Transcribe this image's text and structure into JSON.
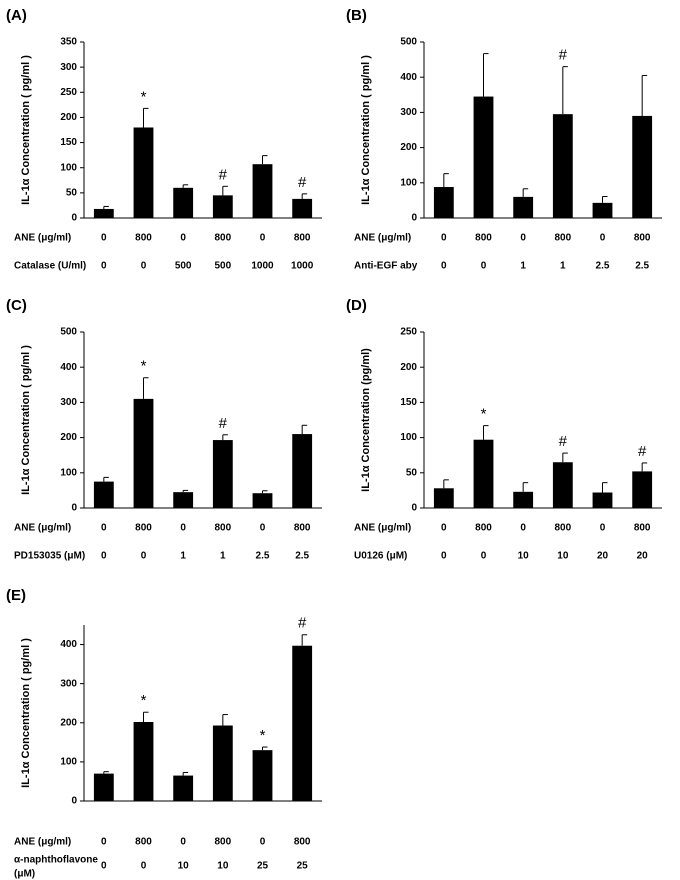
{
  "chart_data": [
    {
      "type": "bar",
      "panel_label": "(A)",
      "y_label": "IL-1α Concentration ( pg/ml )",
      "color": "#000000",
      "values": [
        18,
        180,
        60,
        45,
        107,
        38
      ],
      "errors": [
        5,
        38,
        6,
        18,
        17,
        10
      ],
      "annotations": [
        null,
        "*",
        null,
        "#",
        null,
        "#"
      ],
      "ylim": [
        0,
        350
      ],
      "yticks": [
        0,
        50,
        100,
        150,
        200,
        250,
        300,
        350
      ],
      "rows": [
        {
          "name": "ANE (μg/ml)",
          "labels": [
            "0",
            "800",
            "0",
            "800",
            "0",
            "800"
          ]
        },
        {
          "name": "Catalase (U/ml)",
          "labels": [
            "0",
            "0",
            "500",
            "500",
            "1000",
            "1000"
          ]
        }
      ]
    },
    {
      "type": "bar",
      "panel_label": "(B)",
      "y_label": "IL-1α Concentration ( pg/ml )",
      "color": "#000000",
      "values": [
        88,
        345,
        60,
        295,
        43,
        290
      ],
      "errors": [
        38,
        122,
        23,
        135,
        18,
        115
      ],
      "annotations": [
        null,
        null,
        null,
        "#",
        null,
        null
      ],
      "ylim": [
        0,
        500
      ],
      "yticks": [
        0,
        100,
        200,
        300,
        400,
        500
      ],
      "rows": [
        {
          "name": "ANE (μg/ml)",
          "labels": [
            "0",
            "800",
            "0",
            "800",
            "0",
            "800"
          ]
        },
        {
          "name": "Anti-EGF aby",
          "labels": [
            "0",
            "0",
            "1",
            "1",
            "2.5",
            "2.5"
          ]
        }
      ]
    },
    {
      "type": "bar",
      "panel_label": "(C)",
      "y_label": "IL-1α Concentration ( pg/ml )",
      "color": "#000000",
      "values": [
        75,
        310,
        45,
        193,
        42,
        210
      ],
      "errors": [
        12,
        60,
        5,
        15,
        7,
        25
      ],
      "annotations": [
        null,
        "*",
        null,
        "#",
        null,
        null
      ],
      "ylim": [
        0,
        500
      ],
      "yticks": [
        0,
        100,
        200,
        300,
        400,
        500
      ],
      "rows": [
        {
          "name": "ANE (μg/ml)",
          "labels": [
            "0",
            "800",
            "0",
            "800",
            "0",
            "800"
          ]
        },
        {
          "name": "PD153035 (μM)",
          "labels": [
            "0",
            "0",
            "1",
            "1",
            "2.5",
            "2.5"
          ]
        }
      ]
    },
    {
      "type": "bar",
      "panel_label": "(D)",
      "y_label": "IL-1α Concentration (pg/ml)",
      "color": "#000000",
      "values": [
        28,
        97,
        23,
        65,
        22,
        52
      ],
      "errors": [
        12,
        20,
        13,
        13,
        14,
        12
      ],
      "annotations": [
        null,
        "*",
        null,
        "#",
        null,
        "#"
      ],
      "ylim": [
        0,
        250
      ],
      "yticks": [
        0,
        50,
        100,
        150,
        200,
        250
      ],
      "rows": [
        {
          "name": "ANE (μg/ml)",
          "labels": [
            "0",
            "800",
            "0",
            "800",
            "0",
            "800"
          ]
        },
        {
          "name": "U0126 (μM)",
          "labels": [
            "0",
            "0",
            "10",
            "10",
            "20",
            "20"
          ]
        }
      ]
    },
    {
      "type": "bar",
      "panel_label": "(E)",
      "y_label": "IL-1α Concentration ( pg/ml )",
      "color": "#000000",
      "values": [
        70,
        202,
        65,
        193,
        130,
        397
      ],
      "errors": [
        5,
        25,
        8,
        28,
        8,
        28
      ],
      "annotations": [
        null,
        "*",
        null,
        null,
        "*",
        "#"
      ],
      "ylim": [
        0,
        450
      ],
      "yticks": [
        0,
        100,
        200,
        300,
        400
      ],
      "rows": [
        {
          "name": "ANE (μg/ml)",
          "labels": [
            "0",
            "800",
            "0",
            "800",
            "0",
            "800"
          ]
        },
        {
          "name": [
            "α-naphthoflavone",
            "(μM)"
          ],
          "labels": [
            "0",
            "0",
            "10",
            "10",
            "25",
            "25"
          ]
        }
      ]
    }
  ]
}
